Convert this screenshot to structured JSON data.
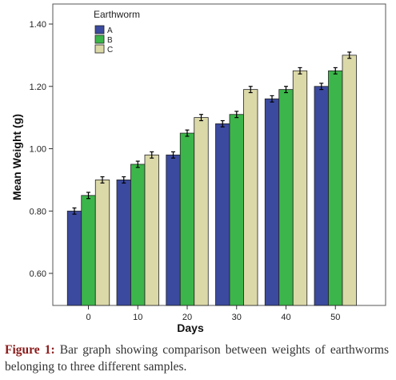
{
  "chart_data": {
    "type": "bar",
    "xlabel": "Days",
    "ylabel": "Mean Weight (g)",
    "categories": [
      "0",
      "10",
      "20",
      "30",
      "40",
      "50"
    ],
    "ylim": [
      0.5,
      1.4
    ],
    "yticks": [
      0.6,
      0.8,
      1.0,
      1.2,
      1.4
    ],
    "ytick_labels": [
      "0.60",
      "0.80",
      "1.00",
      "1.20",
      "1.40"
    ],
    "grid": false,
    "legend": {
      "title": "Earthworm",
      "placement": "top-left"
    },
    "error_bars": true,
    "series": [
      {
        "name": "A",
        "color": "#3b4a9e",
        "values": [
          0.8,
          0.9,
          0.98,
          1.08,
          1.16,
          1.2
        ],
        "errors": [
          0.01,
          0.01,
          0.01,
          0.01,
          0.01,
          0.01
        ]
      },
      {
        "name": "B",
        "color": "#3cb54a",
        "values": [
          0.85,
          0.95,
          1.05,
          1.11,
          1.19,
          1.25
        ],
        "errors": [
          0.01,
          0.01,
          0.01,
          0.01,
          0.01,
          0.01
        ]
      },
      {
        "name": "C",
        "color": "#dcd9a9",
        "values": [
          0.9,
          0.98,
          1.1,
          1.19,
          1.25,
          1.3
        ],
        "errors": [
          0.01,
          0.01,
          0.01,
          0.01,
          0.01,
          0.01
        ]
      }
    ]
  },
  "caption": {
    "label": "Figure 1:",
    "text": " Bar graph showing comparison between weights of earthworms belonging to three different samples."
  }
}
